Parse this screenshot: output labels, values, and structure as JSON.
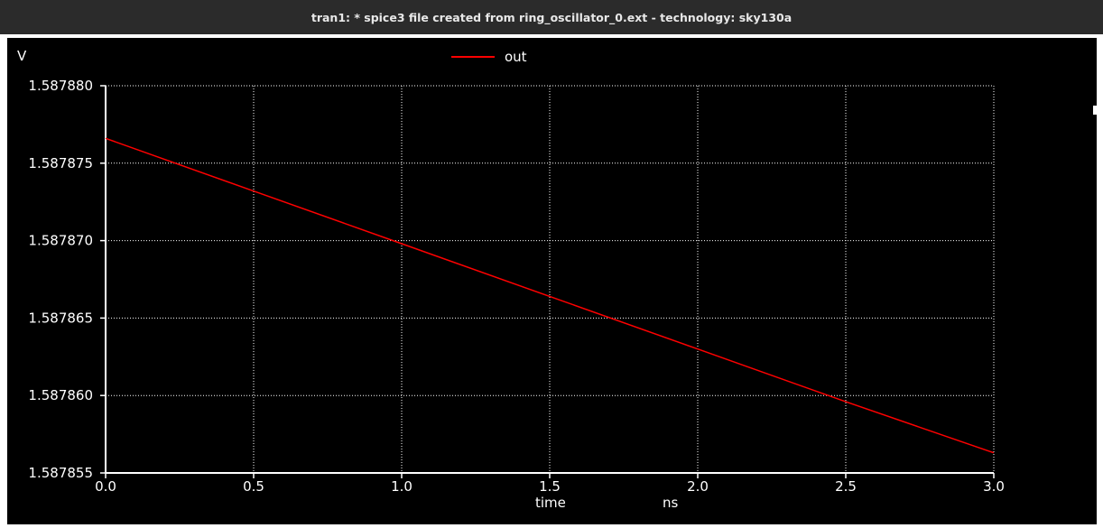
{
  "window": {
    "title": "tran1: * spice3 file created from ring_oscillator_0.ext - technology: sky130a"
  },
  "colors": {
    "background": "#000000",
    "axis": "#ffffff",
    "grid": "#ffffff",
    "series_out": "#ff0000"
  },
  "chart_data": {
    "type": "line",
    "title": "",
    "ylabel": "V",
    "xlabel": "time",
    "xunit": "ns",
    "xlim": [
      0.0,
      3.0
    ],
    "ylim": [
      1.587855,
      1.58788
    ],
    "xticks": [
      0.0,
      0.5,
      1.0,
      1.5,
      2.0,
      2.5,
      3.0
    ],
    "xtick_labels": [
      "0.0",
      "0.5",
      "1.0",
      "1.5",
      "2.0",
      "2.5",
      "3.0"
    ],
    "yticks": [
      1.587855,
      1.58786,
      1.587865,
      1.58787,
      1.587875,
      1.58788
    ],
    "ytick_labels": [
      "1.587855",
      "1.587860",
      "1.587865",
      "1.587870",
      "1.587875",
      "1.587880"
    ],
    "grid": true,
    "legend": "top-center",
    "series": [
      {
        "name": "out",
        "color": "#ff0000",
        "x": [
          0.0,
          0.5,
          1.0,
          1.5,
          2.0,
          2.5,
          3.0
        ],
        "y": [
          1.5878766,
          1.5878732,
          1.5878698,
          1.5878664,
          1.587863,
          1.5878596,
          1.5878563
        ]
      }
    ]
  }
}
